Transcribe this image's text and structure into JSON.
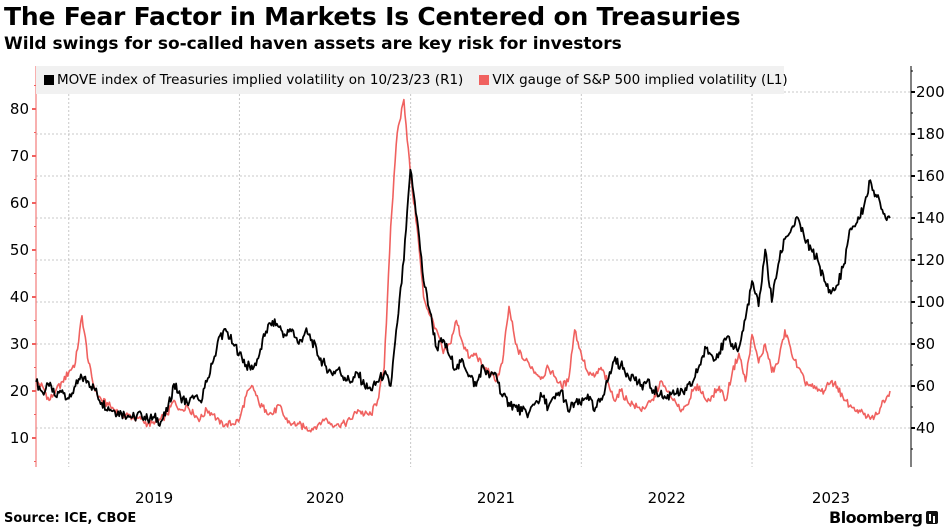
{
  "header": {
    "title": "The Fear Factor in Markets Is Centered on Treasuries",
    "subtitle": "Wild swings for so-called haven assets are key risk for investors"
  },
  "footer": {
    "source": "Source: ICE, CBOE",
    "brand": "Bloomberg"
  },
  "colors": {
    "move": "#000000",
    "vix": "#f0615f",
    "grid": "#c8c8c8",
    "legend_bg": "#f1f1f1"
  },
  "chart_data": {
    "type": "line",
    "title": "The Fear Factor in Markets Is Centered on Treasuries",
    "subtitle": "Wild swings for so-called haven assets are key risk for investors",
    "xlabel": "",
    "x_range": [
      "2018-10-23",
      "2023-10-23"
    ],
    "x_ticks": [
      "2019",
      "2020",
      "2021",
      "2022",
      "2023"
    ],
    "grid": true,
    "legend_position": "top",
    "left_axis": {
      "label": "VIX (L1)",
      "range": [
        5,
        85
      ],
      "ticks": [
        10,
        20,
        30,
        40,
        50,
        60,
        70,
        80
      ]
    },
    "right_axis": {
      "label": "MOVE (R1)",
      "range": [
        20,
        210
      ],
      "ticks": [
        40,
        60,
        80,
        100,
        120,
        140,
        160,
        180,
        200
      ]
    },
    "sampling": "approximately every two weeks from 2018-10-23 to 2023-10-23",
    "series": [
      {
        "name": "MOVE index of Treasuries implied volatility on 10/23/23 (R1)",
        "axis": "right",
        "color": "#000000",
        "values": [
          62,
          57,
          60,
          55,
          58,
          54,
          60,
          64,
          62,
          58,
          52,
          50,
          48,
          47,
          46,
          45,
          47,
          44,
          45,
          43,
          48,
          61,
          55,
          52,
          54,
          53,
          62,
          72,
          84,
          86,
          80,
          76,
          70,
          68,
          75,
          86,
          91,
          88,
          84,
          87,
          80,
          86,
          82,
          74,
          70,
          66,
          68,
          64,
          62,
          66,
          60,
          58,
          62,
          66,
          60,
          90,
          120,
          163,
          140,
          110,
          95,
          78,
          82,
          74,
          68,
          72,
          65,
          60,
          70,
          64,
          66,
          55,
          52,
          50,
          48,
          47,
          52,
          55,
          50,
          54,
          58,
          48,
          52,
          51,
          56,
          48,
          54,
          62,
          72,
          70,
          66,
          64,
          60,
          62,
          58,
          56,
          54,
          58,
          56,
          58,
          62,
          70,
          78,
          74,
          76,
          82,
          80,
          78,
          92,
          110,
          98,
          125,
          100,
          118,
          130,
          135,
          140,
          130,
          125,
          120,
          110,
          104,
          108,
          118,
          135,
          138,
          145,
          158,
          150,
          142,
          140
        ]
      },
      {
        "name": "VIX gauge of S&P 500 implied volatility (L1)",
        "axis": "left",
        "color": "#f0615f",
        "values": [
          22,
          21,
          18,
          20,
          22,
          24,
          26,
          36,
          26,
          20,
          18,
          17,
          16,
          15,
          15,
          14,
          14,
          13,
          13,
          14,
          15,
          18,
          16,
          17,
          15,
          14,
          16,
          15,
          13,
          13,
          13,
          14,
          19,
          21,
          17,
          16,
          15,
          17,
          14,
          13,
          13,
          12,
          12,
          13,
          14,
          13,
          13,
          13,
          14,
          16,
          15,
          15,
          18,
          25,
          55,
          75,
          82,
          66,
          55,
          40,
          36,
          33,
          28,
          30,
          35,
          30,
          27,
          28,
          25,
          24,
          22,
          26,
          38,
          30,
          27,
          26,
          24,
          23,
          25,
          23,
          21,
          22,
          33,
          28,
          24,
          23,
          25,
          22,
          18,
          20,
          18,
          17,
          16,
          17,
          18,
          22,
          20,
          18,
          16,
          17,
          20,
          21,
          18,
          19,
          21,
          18,
          24,
          28,
          22,
          32,
          26,
          30,
          24,
          26,
          33,
          28,
          25,
          22,
          21,
          20,
          20,
          22,
          21,
          18,
          17,
          16,
          15,
          14,
          15,
          18,
          20
        ]
      }
    ]
  }
}
